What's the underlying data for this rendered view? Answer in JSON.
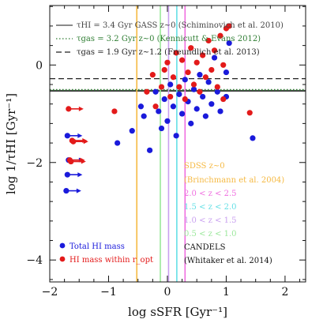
{
  "chart_data": {
    "type": "scatter",
    "xlabel": "log sSFR [Gyr⁻¹]",
    "ylabel": "log 1/τHI [Gyr⁻¹]",
    "xlim": [
      -2.0,
      2.35
    ],
    "ylim": [
      -4.45,
      1.22
    ],
    "x_ticks": [
      -2,
      -1,
      0,
      1,
      2
    ],
    "y_ticks": [
      -4,
      -2,
      0
    ],
    "grid": false,
    "legend_placement": "top-left and bottom-left",
    "reference_lines": [
      {
        "name": "τHI = 3.4 Gyr GASS z~0 (Schiminovich et al. 2010)",
        "orientation": "horizontal",
        "y": -0.53,
        "color": "#444444",
        "style": "solid"
      },
      {
        "name": "τgas = 3.2 Gyr z~0 (Kennicutt & Evans 2012)",
        "orientation": "horizontal",
        "y": -0.51,
        "color": "#2e7d32",
        "style": "dotted"
      },
      {
        "name": "τgas = 1.9 Gyr z~1.2 (Freundlich et al. 2013)",
        "orientation": "horizontal",
        "y": -0.28,
        "color": "#222222",
        "style": "dashed"
      },
      {
        "name": "SDSS z~0 (Brinchmann et al. 2004)",
        "orientation": "vertical",
        "x": -0.52,
        "color": "#f5b942",
        "style": "solid"
      },
      {
        "name": "2.0 < z < 2.5",
        "orientation": "vertical",
        "x": 0.3,
        "color": "#f06ee0",
        "style": "solid"
      },
      {
        "name": "1.5 < z < 2.0",
        "orientation": "vertical",
        "x": 0.16,
        "color": "#66e0e6",
        "style": "solid"
      },
      {
        "name": "1.0 < z < 1.5",
        "orientation": "vertical",
        "x": 0.02,
        "color": "#c9a0f0",
        "style": "solid"
      },
      {
        "name": "0.5 < z < 1.0",
        "orientation": "vertical",
        "x": -0.12,
        "color": "#9be89b",
        "style": "solid"
      }
    ],
    "series": [
      {
        "name": "Total HI mass",
        "color": "#1a1adb",
        "points": [
          {
            "x": -0.85,
            "y": -1.6
          },
          {
            "x": -0.6,
            "y": -1.35
          },
          {
            "x": -0.45,
            "y": -0.85
          },
          {
            "x": -0.4,
            "y": -1.05
          },
          {
            "x": -0.3,
            "y": -1.75
          },
          {
            "x": -0.2,
            "y": -0.55
          },
          {
            "x": -0.15,
            "y": -0.95
          },
          {
            "x": -0.1,
            "y": -1.3
          },
          {
            "x": -0.05,
            "y": -0.7
          },
          {
            "x": 0.0,
            "y": -1.15
          },
          {
            "x": 0.05,
            "y": -0.4
          },
          {
            "x": 0.1,
            "y": -0.85
          },
          {
            "x": 0.15,
            "y": -1.45
          },
          {
            "x": 0.2,
            "y": -0.6
          },
          {
            "x": 0.25,
            "y": -1.0
          },
          {
            "x": 0.3,
            "y": -0.3
          },
          {
            "x": 0.35,
            "y": -0.75
          },
          {
            "x": 0.4,
            "y": -1.2
          },
          {
            "x": 0.45,
            "y": -0.5
          },
          {
            "x": 0.5,
            "y": -0.9
          },
          {
            "x": 0.55,
            "y": -0.2
          },
          {
            "x": 0.6,
            "y": -0.65
          },
          {
            "x": 0.65,
            "y": -1.05
          },
          {
            "x": 0.7,
            "y": -0.35
          },
          {
            "x": 0.75,
            "y": -0.8
          },
          {
            "x": 0.8,
            "y": 0.15
          },
          {
            "x": 0.85,
            "y": -0.55
          },
          {
            "x": 0.9,
            "y": -0.95
          },
          {
            "x": 1.0,
            "y": -0.15
          },
          {
            "x": 1.0,
            "y": -0.65
          },
          {
            "x": 1.05,
            "y": 0.45
          },
          {
            "x": 1.45,
            "y": -1.5
          }
        ],
        "upper_limit_points": [
          {
            "x": -1.7,
            "y": -1.45
          },
          {
            "x": -1.68,
            "y": -1.95
          },
          {
            "x": -1.7,
            "y": -2.25
          },
          {
            "x": -1.72,
            "y": -2.58
          }
        ]
      },
      {
        "name": "HI mass within r_opt",
        "color": "#e31a1a",
        "points": [
          {
            "x": -0.9,
            "y": -0.95
          },
          {
            "x": -0.35,
            "y": -0.55
          },
          {
            "x": -0.25,
            "y": -0.2
          },
          {
            "x": -0.2,
            "y": -0.85
          },
          {
            "x": -0.1,
            "y": -0.45
          },
          {
            "x": 0.0,
            "y": 0.05
          },
          {
            "x": 0.05,
            "y": -0.65
          },
          {
            "x": 0.1,
            "y": -0.25
          },
          {
            "x": 0.15,
            "y": 0.25
          },
          {
            "x": 0.2,
            "y": -0.45
          },
          {
            "x": 0.25,
            "y": 0.1
          },
          {
            "x": 0.3,
            "y": -0.7
          },
          {
            "x": 0.35,
            "y": -0.15
          },
          {
            "x": 0.4,
            "y": 0.35
          },
          {
            "x": 0.45,
            "y": -0.4
          },
          {
            "x": 0.5,
            "y": 0.05
          },
          {
            "x": 0.55,
            "y": -0.55
          },
          {
            "x": 0.6,
            "y": 0.2
          },
          {
            "x": 0.65,
            "y": -0.25
          },
          {
            "x": 0.7,
            "y": 0.5
          },
          {
            "x": 0.75,
            "y": -0.1
          },
          {
            "x": 0.8,
            "y": 0.3
          },
          {
            "x": 0.85,
            "y": -0.45
          },
          {
            "x": 0.9,
            "y": 0.6
          },
          {
            "x": 0.95,
            "y": 0.0
          },
          {
            "x": 1.0,
            "y": 0.75
          },
          {
            "x": 1.05,
            "y": 0.8
          },
          {
            "x": 0.95,
            "y": -0.7
          },
          {
            "x": 1.4,
            "y": -0.98
          },
          {
            "x": -0.05,
            "y": -0.1
          }
        ],
        "upper_limit_points": [
          {
            "x": -1.68,
            "y": -0.9
          },
          {
            "x": -1.62,
            "y": -1.55
          },
          {
            "x": -1.66,
            "y": -1.95
          },
          {
            "x": -1.64,
            "y": -1.98
          },
          {
            "x": -1.6,
            "y": -1.57
          }
        ]
      }
    ],
    "annotations": [
      {
        "text": "SDSS z~0",
        "color": "#f5b942"
      },
      {
        "text": "(Brinchmann et al. 2004)",
        "color": "#f5b942"
      },
      {
        "text": "2.0 < z < 2.5",
        "color": "#f06ee0"
      },
      {
        "text": "1.5 < z < 2.0",
        "color": "#66e0e6"
      },
      {
        "text": "1.0 < z < 1.5",
        "color": "#c9a0f0"
      },
      {
        "text": "0.5 < z < 1.0",
        "color": "#9be89b"
      },
      {
        "text": "CANDELS",
        "color": "#111111"
      },
      {
        "text": "(Whitaker et al. 2014)",
        "color": "#111111"
      }
    ]
  }
}
